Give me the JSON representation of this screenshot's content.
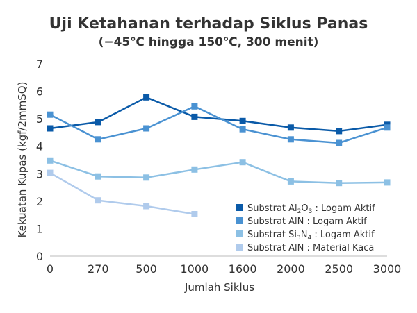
{
  "chart_data": {
    "type": "line",
    "title": "Uji Ketahanan terhadap Siklus Panas",
    "subtitle": "(−45℃ hingga 150℃, 300 menit)",
    "xlabel": "Jumlah Siklus",
    "ylabel": "Kekuatan Kupas (kgf/2mmSQ)",
    "categories": [
      "0",
      "270",
      "500",
      "1000",
      "1600",
      "2000",
      "2500",
      "3000"
    ],
    "yticks": [
      "0",
      "1",
      "2",
      "3",
      "4",
      "5",
      "6",
      "7"
    ],
    "ylim": [
      0,
      7
    ],
    "grid": false,
    "legend_position": "bottom-right",
    "series": [
      {
        "label_parts": [
          {
            "text": "Substrat Al",
            "sub": false
          },
          {
            "text": "2",
            "sub": true
          },
          {
            "text": "O",
            "sub": false
          },
          {
            "text": "3",
            "sub": true
          },
          {
            "text": " : Logam Aktif",
            "sub": false
          }
        ],
        "color": "#0a5aa8",
        "values": [
          4.65,
          4.88,
          5.78,
          5.07,
          4.92,
          4.68,
          4.55,
          4.78
        ]
      },
      {
        "label_parts": [
          {
            "text": "Substrat AlN    : Logam Aktif",
            "sub": false
          }
        ],
        "color": "#4a92d2",
        "values": [
          5.15,
          4.25,
          4.65,
          5.45,
          4.62,
          4.25,
          4.12,
          4.68
        ]
      },
      {
        "label_parts": [
          {
            "text": "Substrat Si",
            "sub": false
          },
          {
            "text": "3",
            "sub": true
          },
          {
            "text": "N",
            "sub": false
          },
          {
            "text": "4",
            "sub": true
          },
          {
            "text": " : Logam Aktif",
            "sub": false
          }
        ],
        "color": "#8cc0e4",
        "values": [
          3.48,
          2.9,
          2.86,
          3.15,
          3.42,
          2.72,
          2.66,
          2.68
        ]
      },
      {
        "label_parts": [
          {
            "text": "Substrat AlN    : Material Kaca",
            "sub": false
          }
        ],
        "color": "#b0cbec",
        "values": [
          3.03,
          2.03,
          1.82,
          1.53,
          null,
          null,
          null,
          null
        ]
      }
    ]
  }
}
